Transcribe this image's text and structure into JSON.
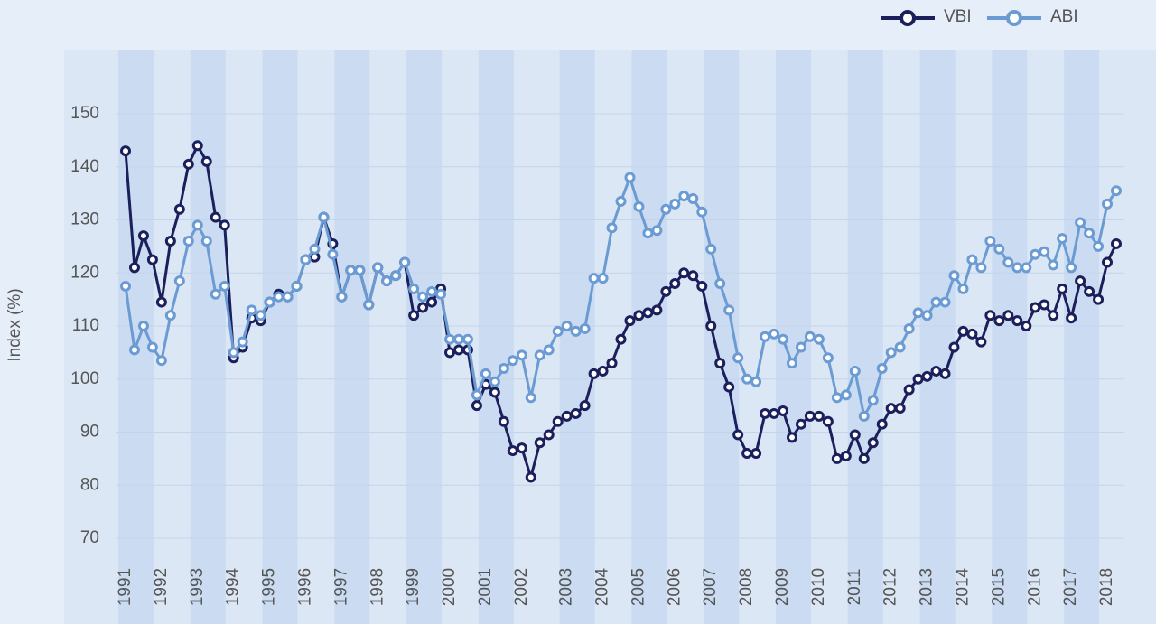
{
  "chart_data": {
    "type": "line",
    "y_label": "Index (%)",
    "categories": [
      "1991",
      null,
      null,
      null,
      "1992",
      null,
      null,
      null,
      "1993",
      null,
      null,
      null,
      "1994",
      null,
      null,
      null,
      "1995",
      null,
      null,
      null,
      "1996",
      null,
      null,
      null,
      "1997",
      null,
      null,
      null,
      "1998",
      null,
      null,
      null,
      "1999",
      null,
      null,
      null,
      "2000",
      null,
      null,
      null,
      "2001",
      null,
      null,
      null,
      "2002",
      null,
      null,
      null,
      null,
      "2003",
      null,
      null,
      null,
      "2004",
      null,
      null,
      null,
      "2005",
      null,
      null,
      null,
      "2006",
      null,
      null,
      null,
      "2007",
      null,
      null,
      null,
      "2008",
      null,
      null,
      null,
      "2009",
      null,
      null,
      null,
      "2010",
      null,
      null,
      null,
      "2011",
      null,
      null,
      null,
      "2012",
      null,
      null,
      null,
      "2013",
      null,
      null,
      null,
      "2014",
      null,
      null,
      null,
      "2015",
      null,
      null,
      null,
      "2016",
      null,
      null,
      null,
      "2017",
      null,
      null,
      null,
      "2018",
      null
    ],
    "series": [
      {
        "name": "VBI",
        "color": "#1b1f5c",
        "values": [
          143,
          121,
          127,
          122.5,
          114.5,
          126,
          132,
          140.5,
          144,
          141,
          130.5,
          129,
          104,
          106,
          111.5,
          111,
          114.5,
          116,
          115.5,
          117.5,
          122.5,
          123,
          130.5,
          125.5,
          115.5,
          120.5,
          120.5,
          114,
          121,
          118.5,
          119.5,
          122,
          112,
          113.5,
          114.5,
          117,
          105,
          105.5,
          105.5,
          95,
          99,
          97.5,
          92,
          86.5,
          87,
          81.5,
          88,
          89.5,
          92,
          93,
          93.5,
          95,
          101,
          101.5,
          103,
          107.5,
          111,
          112,
          112.5,
          113,
          116.5,
          118,
          120,
          119.5,
          117.5,
          110,
          103,
          98.5,
          89.5,
          86,
          86,
          93.5,
          93.5,
          94,
          89,
          91.5,
          93,
          93,
          92,
          85,
          85.5,
          89.5,
          85,
          88,
          91.5,
          94.5,
          94.5,
          98,
          100,
          100.5,
          101.5,
          101,
          106,
          109,
          108.5,
          107,
          112,
          111,
          112,
          111,
          110,
          113.5,
          114,
          112,
          117,
          111.5,
          118.5,
          116.5,
          115,
          122,
          125.5
        ]
      },
      {
        "name": "ABI",
        "color": "#6b9bd3",
        "values": [
          117.5,
          105.5,
          110,
          106,
          103.5,
          112,
          118.5,
          126,
          129,
          126,
          116,
          117.5,
          105,
          107,
          113,
          112,
          114.5,
          115.5,
          115.5,
          117.5,
          122.5,
          124.5,
          130.5,
          123.5,
          115.5,
          120.5,
          120.5,
          114,
          121,
          118.5,
          119.5,
          122,
          117,
          115.5,
          116.5,
          116,
          107.5,
          107.5,
          107.5,
          97,
          101,
          99.5,
          102,
          103.5,
          104.5,
          96.5,
          104.5,
          105.5,
          109,
          110,
          109,
          109.5,
          119,
          119,
          128.5,
          133.5,
          138,
          132.5,
          127.5,
          128,
          132,
          133,
          134.5,
          134,
          131.5,
          124.5,
          118,
          113,
          104,
          100,
          99.5,
          108,
          108.5,
          107.5,
          103,
          106,
          108,
          107.5,
          104,
          96.5,
          97,
          101.5,
          93,
          96,
          102,
          105,
          106,
          109.5,
          112.5,
          112,
          114.5,
          114.5,
          119.5,
          117,
          122.5,
          121,
          126,
          124.5,
          122,
          121,
          121,
          123.5,
          124,
          121.5,
          126.5,
          121,
          129.5,
          127.5,
          125,
          133,
          135.5
        ]
      }
    ],
    "ylim": [
      70,
      150
    ],
    "yticks": [
      70,
      80,
      90,
      100,
      110,
      120,
      130,
      140,
      150
    ],
    "grid": true
  }
}
